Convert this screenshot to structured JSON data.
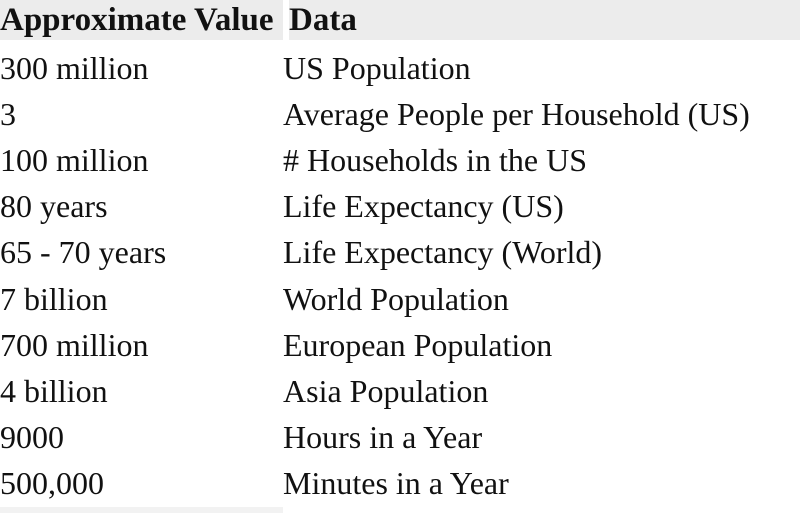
{
  "page": {
    "background_color": "#ffffff",
    "text_color": "#111111",
    "header_background_color": "#ececec"
  },
  "table": {
    "headers": [
      "Approximate Value",
      "Data"
    ],
    "rows": [
      {
        "value": "300 million",
        "label": "US Population"
      },
      {
        "value": "3",
        "label": "Average People per Household (US)"
      },
      {
        "value": "100 million",
        "label": "# Households in the US"
      },
      {
        "value": "80 years",
        "label": "Life Expectancy (US)"
      },
      {
        "value": "65 - 70 years",
        "label": "Life Expectancy (World)"
      },
      {
        "value": "7 billion",
        "label": "World Population"
      },
      {
        "value": "700 million",
        "label": "European Population"
      },
      {
        "value": "4 billion",
        "label": "Asia Population"
      },
      {
        "value": "9000",
        "label": "Hours in a Year"
      },
      {
        "value": "500,000",
        "label": "Minutes in a Year"
      }
    ]
  }
}
